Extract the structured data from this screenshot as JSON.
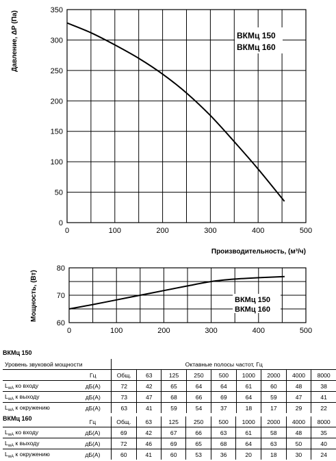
{
  "chart_data": [
    {
      "type": "line",
      "ylabel": "Давление, ΔP (Па)",
      "xlabel": "Производительность, (м³/ч)",
      "xlim": [
        0,
        500
      ],
      "ylim": [
        0,
        350
      ],
      "xticks": [
        0,
        100,
        200,
        300,
        400,
        500
      ],
      "yticks": [
        0,
        50,
        100,
        150,
        200,
        250,
        300,
        350
      ],
      "grid": true,
      "annotations": [
        "ВКМц 150",
        "ВКМц 160"
      ],
      "series": [
        {
          "x": [
            0,
            50,
            100,
            150,
            200,
            250,
            300,
            350,
            400,
            455
          ],
          "values": [
            328,
            312,
            292,
            270,
            244,
            213,
            176,
            133,
            88,
            35
          ]
        }
      ]
    },
    {
      "type": "line",
      "ylabel": "Мощность, (Вт)",
      "xlim": [
        0,
        500
      ],
      "ylim": [
        60,
        80
      ],
      "xticks": [
        0,
        100,
        200,
        300,
        400,
        500
      ],
      "yticks": [
        60,
        70,
        80
      ],
      "grid": true,
      "annotations": [
        "ВКМц 150",
        "ВКМц 160"
      ],
      "series": [
        {
          "x": [
            0,
            50,
            100,
            150,
            200,
            250,
            300,
            350,
            400,
            455
          ],
          "values": [
            65,
            66.6,
            68.3,
            70,
            71.7,
            73.4,
            75,
            75.9,
            76.4,
            76.8
          ]
        }
      ]
    }
  ],
  "table1": {
    "title": "ВКМц 150",
    "subtitle": "Уровень звуковой мощности",
    "bands_header": "Октавные полосы частот, Гц",
    "unit_header": "Гц",
    "columns": [
      "Общ.",
      "63",
      "125",
      "250",
      "500",
      "1000",
      "2000",
      "4000",
      "8000"
    ],
    "rows": [
      {
        "label_main": "L",
        "label_sub": "wA",
        "label_rest": " ко входу",
        "unit": "дБ(А)",
        "values": [
          "72",
          "42",
          "65",
          "64",
          "64",
          "61",
          "60",
          "48",
          "38"
        ]
      },
      {
        "label_main": "L",
        "label_sub": "wA",
        "label_rest": " к выходу",
        "unit": "дБ(А)",
        "values": [
          "73",
          "47",
          "68",
          "66",
          "69",
          "64",
          "59",
          "47",
          "41"
        ]
      },
      {
        "label_main": "L",
        "label_sub": "wA",
        "label_rest": " к окружению",
        "unit": "дБ(А)",
        "values": [
          "63",
          "41",
          "59",
          "54",
          "37",
          "18",
          "17",
          "29",
          "22"
        ]
      }
    ]
  },
  "table2": {
    "title": "ВКМц 160",
    "unit_header": "Гц",
    "columns": [
      "Общ.",
      "63",
      "125",
      "250",
      "500",
      "1000",
      "2000",
      "4000",
      "8000"
    ],
    "rows": [
      {
        "label_main": "L",
        "label_sub": "wA",
        "label_rest": " ко входу",
        "unit": "дБ(А)",
        "values": [
          "69",
          "42",
          "67",
          "66",
          "63",
          "61",
          "58",
          "48",
          "35"
        ]
      },
      {
        "label_main": "L",
        "label_sub": "wA",
        "label_rest": " к выходу",
        "unit": "дБ(А)",
        "values": [
          "72",
          "46",
          "69",
          "65",
          "68",
          "64",
          "63",
          "50",
          "40"
        ]
      },
      {
        "label_main": "L",
        "label_sub": "wA",
        "label_rest": " к окружению",
        "unit": "дБ(А)",
        "values": [
          "60",
          "41",
          "60",
          "53",
          "36",
          "20",
          "18",
          "30",
          "24"
        ]
      }
    ]
  }
}
